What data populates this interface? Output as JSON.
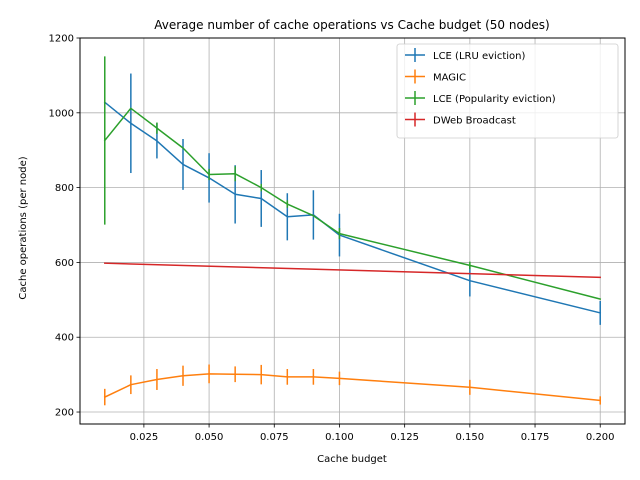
{
  "chart_data": {
    "type": "line",
    "title": "Average number of cache operations vs Cache budget (50 nodes)",
    "xlabel": "Cache budget",
    "ylabel": "Cache operations (per node)",
    "xlim": [
      0.0005,
      0.2095
    ],
    "ylim": [
      168,
      1200
    ],
    "xticks": [
      0.025,
      0.05,
      0.075,
      0.1,
      0.125,
      0.15,
      0.175,
      0.2
    ],
    "xtick_labels": [
      "0.025",
      "0.050",
      "0.075",
      "0.100",
      "0.125",
      "0.150",
      "0.175",
      "0.200"
    ],
    "yticks": [
      200,
      400,
      600,
      800,
      1000,
      1200
    ],
    "ytick_labels": [
      "200",
      "400",
      "600",
      "800",
      "1000",
      "1200"
    ],
    "grid": true,
    "legend_position": "top-right",
    "series": [
      {
        "name": "LCE (LRU eviction)",
        "color": "#1f77b4",
        "x": [
          0.01,
          0.02,
          0.03,
          0.04,
          0.05,
          0.06,
          0.07,
          0.08,
          0.09,
          0.1,
          0.15,
          0.2
        ],
        "y": [
          1028,
          972,
          925,
          862,
          826,
          782,
          771,
          722,
          727,
          673,
          551,
          465
        ],
        "err": [
          null,
          133,
          47,
          68,
          66,
          78,
          76,
          63,
          66,
          57,
          42,
          32
        ]
      },
      {
        "name": "MAGIC",
        "color": "#ff7f0e",
        "x": [
          0.01,
          0.02,
          0.03,
          0.04,
          0.05,
          0.06,
          0.07,
          0.08,
          0.09,
          0.1,
          0.15,
          0.2
        ],
        "y": [
          240,
          273,
          287,
          297,
          302,
          301,
          300,
          294,
          294,
          290,
          266,
          231
        ],
        "err": [
          22,
          25,
          28,
          27,
          25,
          21,
          26,
          21,
          21,
          18,
          20,
          11
        ]
      },
      {
        "name": "LCE (Popularity eviction)",
        "color": "#2ca02c",
        "x": [
          0.01,
          0.02,
          0.03,
          0.04,
          0.05,
          0.06,
          0.07,
          0.08,
          0.09,
          0.1,
          0.15,
          0.2
        ],
        "y": [
          926,
          1012,
          959,
          906,
          835,
          837,
          800,
          756,
          725,
          677,
          592,
          502
        ],
        "err": [
          225,
          null,
          15,
          null,
          15,
          20,
          10,
          10,
          null,
          15,
          10,
          null
        ]
      },
      {
        "name": "DWeb Broadcast",
        "color": "#d62728",
        "x": [
          0.01,
          0.2
        ],
        "y": [
          598,
          560
        ],
        "err": [
          null,
          null
        ]
      }
    ]
  }
}
